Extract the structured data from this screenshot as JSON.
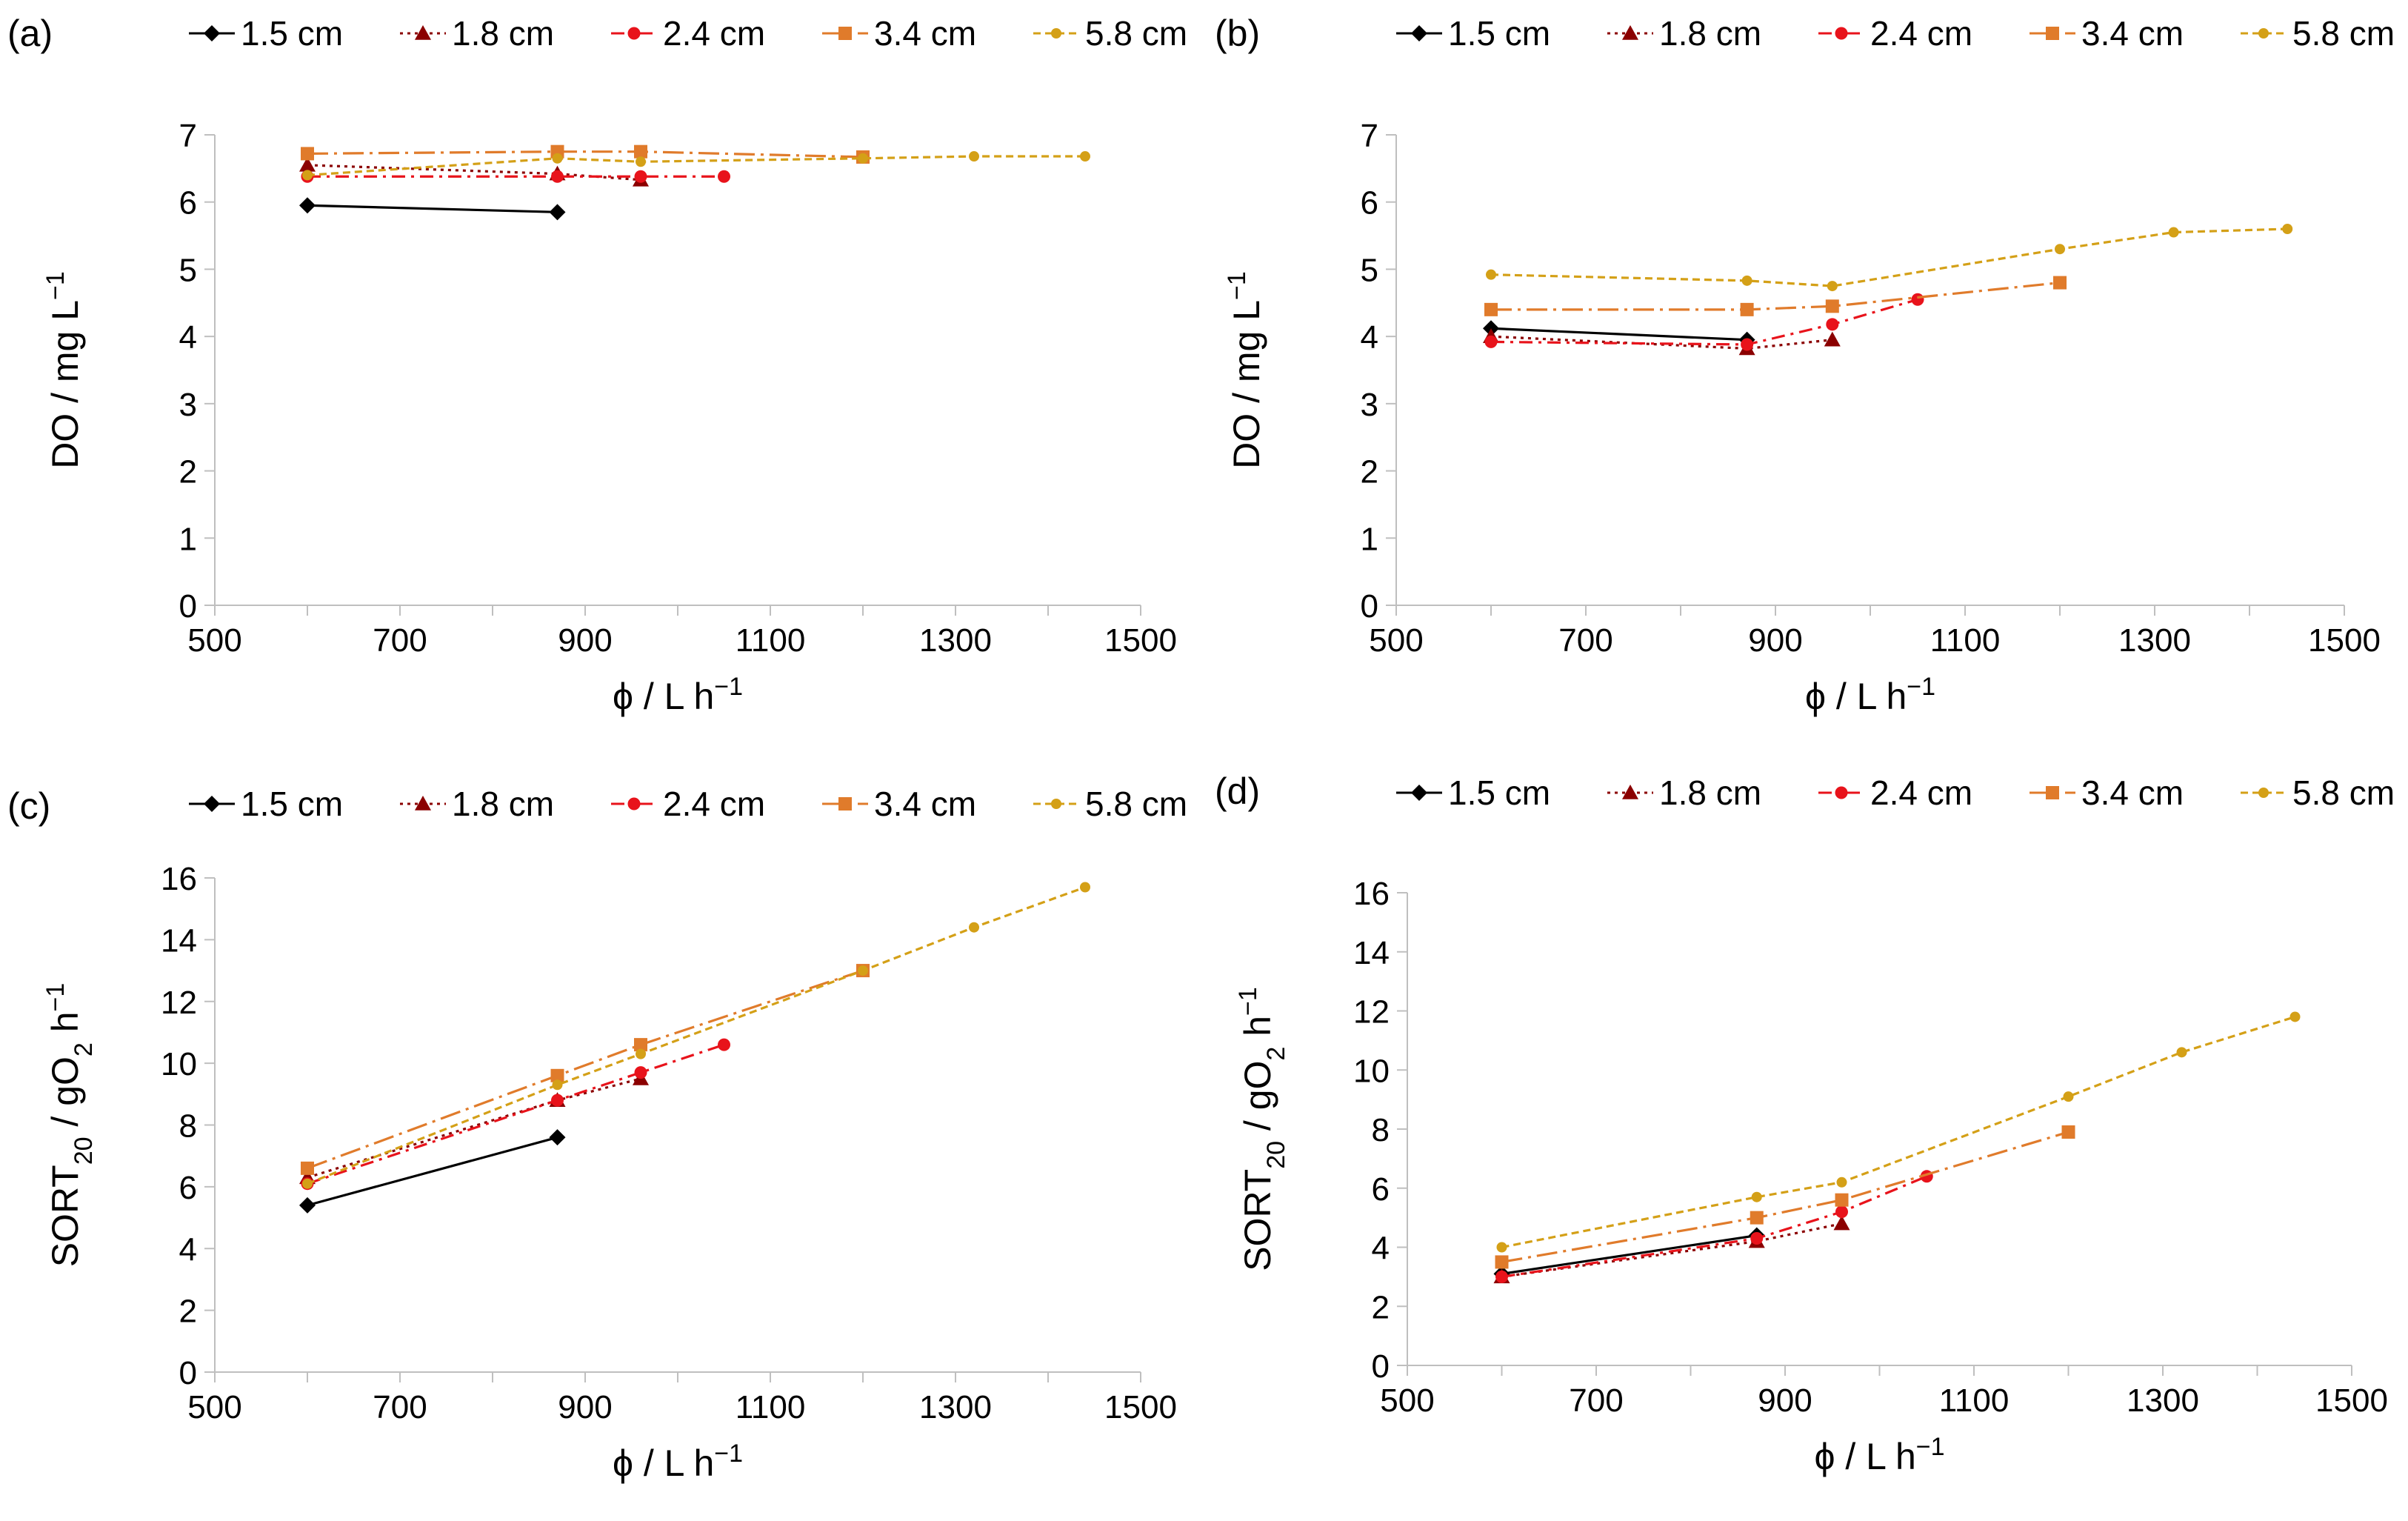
{
  "figure": {
    "description_free": true
  },
  "series_styles": [
    {
      "name": "1.5 cm",
      "color": "#000000",
      "marker": "diamond",
      "dash": "solid"
    },
    {
      "name": "1.8 cm",
      "color": "#8B0000",
      "marker": "triangle",
      "dash": "dotted"
    },
    {
      "name": "2.4 cm",
      "color": "#E8131B",
      "marker": "circle",
      "dash": "dashdot"
    },
    {
      "name": "3.4 cm",
      "color": "#E07B2B",
      "marker": "square",
      "dash": "longdashdot"
    },
    {
      "name": "5.8 cm",
      "color": "#D4A017",
      "marker": "smallcircle",
      "dash": "shortdash"
    }
  ],
  "chart_data": [
    {
      "panel": "(a)",
      "type": "line",
      "xlabel": "ϕ / L h",
      "xlabel_sup": "−1",
      "ylabel": "DO / mg L",
      "ylabel_sup": "−1",
      "xlim": [
        500,
        1500
      ],
      "ylim": [
        0,
        7
      ],
      "xticks": [
        500,
        700,
        900,
        1100,
        1300,
        1500
      ],
      "yticks": [
        0,
        1,
        2,
        3,
        4,
        5,
        6,
        7
      ],
      "series": [
        {
          "name": "1.5 cm",
          "x": [
            600,
            870
          ],
          "values": [
            5.95,
            5.85
          ]
        },
        {
          "name": "1.8 cm",
          "x": [
            600,
            870,
            960
          ],
          "values": [
            6.55,
            6.42,
            6.33
          ]
        },
        {
          "name": "2.4 cm",
          "x": [
            600,
            870,
            960,
            1050
          ],
          "values": [
            6.38,
            6.38,
            6.38,
            6.38
          ]
        },
        {
          "name": "3.4 cm",
          "x": [
            600,
            870,
            960,
            1200
          ],
          "values": [
            6.72,
            6.75,
            6.75,
            6.67
          ]
        },
        {
          "name": "5.8 cm",
          "x": [
            600,
            870,
            960,
            1200,
            1320,
            1440
          ],
          "values": [
            6.4,
            6.65,
            6.6,
            6.65,
            6.68,
            6.68
          ]
        }
      ]
    },
    {
      "panel": "(b)",
      "type": "line",
      "xlabel": "ϕ / L h",
      "xlabel_sup": "−1",
      "ylabel": "DO / mg L",
      "ylabel_sup": "−1",
      "xlim": [
        500,
        1500
      ],
      "ylim": [
        0,
        7
      ],
      "xticks": [
        500,
        700,
        900,
        1100,
        1300,
        1500
      ],
      "yticks": [
        0,
        1,
        2,
        3,
        4,
        5,
        6,
        7
      ],
      "series": [
        {
          "name": "1.5 cm",
          "x": [
            600,
            870
          ],
          "values": [
            4.12,
            3.95
          ]
        },
        {
          "name": "1.8 cm",
          "x": [
            600,
            870,
            960
          ],
          "values": [
            4.0,
            3.82,
            3.95
          ]
        },
        {
          "name": "2.4 cm",
          "x": [
            600,
            870,
            960,
            1050
          ],
          "values": [
            3.92,
            3.88,
            4.18,
            4.55
          ]
        },
        {
          "name": "3.4 cm",
          "x": [
            600,
            870,
            960,
            1200
          ],
          "values": [
            4.4,
            4.4,
            4.45,
            4.8
          ]
        },
        {
          "name": "5.8 cm",
          "x": [
            600,
            870,
            960,
            1200,
            1320,
            1440
          ],
          "values": [
            4.92,
            4.83,
            4.75,
            5.3,
            5.55,
            5.6
          ]
        }
      ]
    },
    {
      "panel": "(c)",
      "type": "line",
      "xlabel": "ϕ / L h",
      "xlabel_sup": "−1",
      "ylabel": "SORT",
      "ylabel_sub": "20",
      "ylabel_mid": " / gO",
      "ylabel_sub2": "2",
      "ylabel_end": " h",
      "ylabel_sup": "−1",
      "xlim": [
        500,
        1500
      ],
      "ylim": [
        0,
        16
      ],
      "xticks": [
        500,
        700,
        900,
        1100,
        1300,
        1500
      ],
      "yticks": [
        0,
        2,
        4,
        6,
        8,
        10,
        12,
        14,
        16
      ],
      "series": [
        {
          "name": "1.5 cm",
          "x": [
            600,
            870
          ],
          "values": [
            5.4,
            7.6
          ]
        },
        {
          "name": "1.8 cm",
          "x": [
            600,
            870,
            960
          ],
          "values": [
            6.3,
            8.8,
            9.5
          ]
        },
        {
          "name": "2.4 cm",
          "x": [
            600,
            870,
            960,
            1050
          ],
          "values": [
            6.1,
            8.8,
            9.7,
            10.6
          ]
        },
        {
          "name": "3.4 cm",
          "x": [
            600,
            870,
            960,
            1200
          ],
          "values": [
            6.6,
            9.6,
            10.6,
            13.0
          ]
        },
        {
          "name": "5.8 cm",
          "x": [
            600,
            870,
            960,
            1200,
            1320,
            1440
          ],
          "values": [
            6.1,
            9.3,
            10.3,
            13.0,
            14.4,
            15.7
          ]
        }
      ]
    },
    {
      "panel": "(d)",
      "type": "line",
      "xlabel": "ϕ / L h",
      "xlabel_sup": "−1",
      "ylabel": "SORT",
      "ylabel_sub": "20",
      "ylabel_mid": " / gO",
      "ylabel_sub2": "2",
      "ylabel_end": " h",
      "ylabel_sup": "−1",
      "xlim": [
        500,
        1500
      ],
      "ylim": [
        0,
        16
      ],
      "xticks": [
        500,
        700,
        900,
        1100,
        1300,
        1500
      ],
      "yticks": [
        0,
        2,
        4,
        6,
        8,
        10,
        12,
        14,
        16
      ],
      "series": [
        {
          "name": "1.5 cm",
          "x": [
            600,
            870
          ],
          "values": [
            3.1,
            4.4
          ]
        },
        {
          "name": "1.8 cm",
          "x": [
            600,
            870,
            960
          ],
          "values": [
            3.0,
            4.2,
            4.8
          ]
        },
        {
          "name": "2.4 cm",
          "x": [
            600,
            870,
            960,
            1050
          ],
          "values": [
            3.0,
            4.3,
            5.2,
            6.4
          ]
        },
        {
          "name": "3.4 cm",
          "x": [
            600,
            870,
            960,
            1200
          ],
          "values": [
            3.5,
            5.0,
            5.6,
            7.9
          ]
        },
        {
          "name": "5.8 cm",
          "x": [
            600,
            870,
            960,
            1200,
            1320,
            1440
          ],
          "values": [
            4.0,
            5.7,
            6.2,
            9.1,
            10.6,
            11.8
          ]
        }
      ]
    }
  ]
}
